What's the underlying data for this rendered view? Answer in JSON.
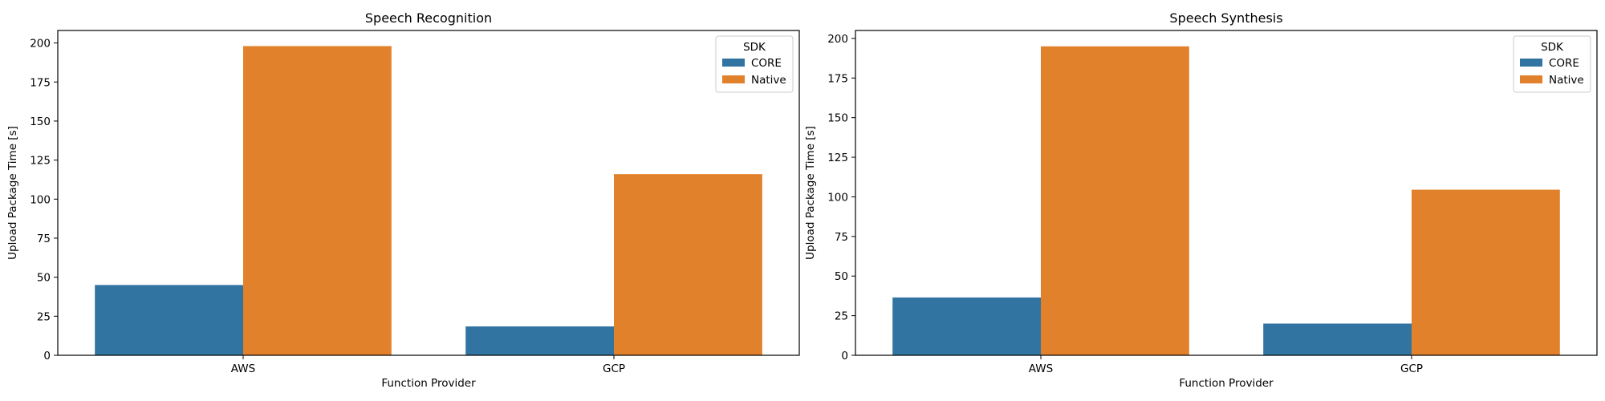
{
  "colors": {
    "CORE": "#3274a1",
    "Native": "#e1812c"
  },
  "chart_data": [
    {
      "type": "bar",
      "title": "Speech Recognition",
      "xlabel": "Function Provider",
      "ylabel": "Upload Package Time [s]",
      "categories": [
        "AWS",
        "GCP"
      ],
      "series": [
        {
          "name": "CORE",
          "values": [
            45,
            18.5
          ]
        },
        {
          "name": "Native",
          "values": [
            198,
            116
          ]
        }
      ],
      "ylim": [
        0,
        208
      ],
      "yticks": [
        0,
        25,
        50,
        75,
        100,
        125,
        150,
        175,
        200
      ],
      "legend": {
        "title": "SDK",
        "placement": "top-right"
      },
      "grid": false
    },
    {
      "type": "bar",
      "title": "Speech Synthesis",
      "xlabel": "Function Provider",
      "ylabel": "Upload Package Time [s]",
      "categories": [
        "AWS",
        "GCP"
      ],
      "series": [
        {
          "name": "CORE",
          "values": [
            36.5,
            20
          ]
        },
        {
          "name": "Native",
          "values": [
            195,
            104.5
          ]
        }
      ],
      "ylim": [
        0,
        205
      ],
      "yticks": [
        0,
        25,
        50,
        75,
        100,
        125,
        150,
        175,
        200
      ],
      "legend": {
        "title": "SDK",
        "placement": "top-right"
      },
      "grid": false
    }
  ]
}
